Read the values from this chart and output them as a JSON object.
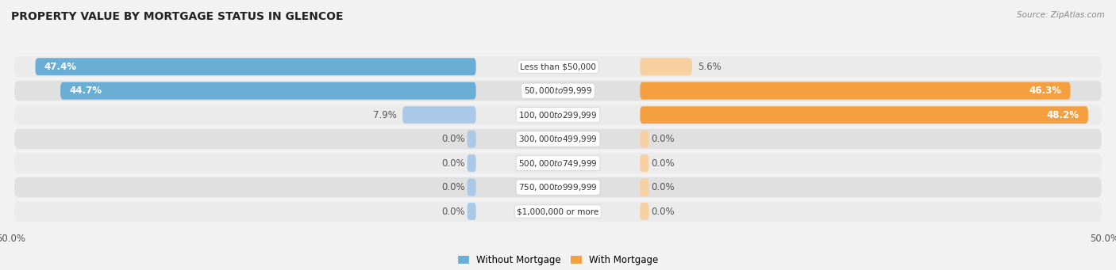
{
  "title": "PROPERTY VALUE BY MORTGAGE STATUS IN GLENCOE",
  "source": "Source: ZipAtlas.com",
  "categories": [
    "Less than $50,000",
    "$50,000 to $99,999",
    "$100,000 to $299,999",
    "$300,000 to $499,999",
    "$500,000 to $749,999",
    "$750,000 to $999,999",
    "$1,000,000 or more"
  ],
  "without_mortgage": [
    47.4,
    44.7,
    7.9,
    0.0,
    0.0,
    0.0,
    0.0
  ],
  "with_mortgage": [
    5.6,
    46.3,
    48.2,
    0.0,
    0.0,
    0.0,
    0.0
  ],
  "color_without": "#6aaed6",
  "color_with": "#f4a040",
  "color_without_light": "#aac8e8",
  "color_with_light": "#f8cfa0",
  "xlim": 50.0,
  "bar_height": 0.72,
  "row_bg_light": "#ebebeb",
  "row_bg_dark": "#e0e0e0",
  "fig_bg": "#f2f2f2",
  "label_fontsize": 7.5,
  "value_fontsize": 8.5,
  "title_fontsize": 10,
  "source_fontsize": 7.5
}
